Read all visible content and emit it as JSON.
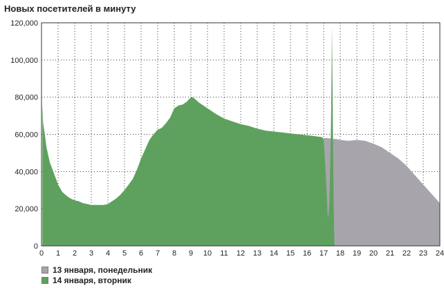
{
  "chart_data": {
    "type": "area",
    "title": "Новых посетителей в минуту",
    "x_ticks": [
      "0",
      "1",
      "2",
      "3",
      "4",
      "5",
      "6",
      "7",
      "8",
      "9",
      "10",
      "11",
      "12",
      "13",
      "14",
      "15",
      "16",
      "17",
      "18",
      "19",
      "20",
      "21",
      "22",
      "23",
      "24"
    ],
    "y_ticks": [
      "0",
      "20,000",
      "40,000",
      "60,000",
      "80,000",
      "100,000",
      "120,000"
    ],
    "xlim": [
      0,
      24
    ],
    "ylim": [
      0,
      120000
    ],
    "grid": true,
    "legend_placement": "bottom-left",
    "series": [
      {
        "name": "13 января, понедельник",
        "color": "#a7a5ab",
        "x": [
          17.0,
          17.25,
          17.5,
          17.75,
          18.0,
          18.5,
          19.0,
          19.5,
          20.0,
          20.5,
          21.0,
          21.5,
          22.0,
          22.5,
          23.0,
          23.5,
          24.0
        ],
        "y": [
          58000,
          58000,
          57500,
          57500,
          57000,
          56500,
          57000,
          56500,
          55000,
          53000,
          50000,
          47000,
          43000,
          38000,
          33000,
          28000,
          23000
        ]
      },
      {
        "name": "14 января, вторник",
        "color": "#5ea15e",
        "x": [
          0.05,
          0.1,
          0.2,
          0.3,
          0.5,
          0.75,
          1.0,
          1.25,
          1.5,
          1.75,
          2.0,
          2.25,
          2.5,
          2.75,
          3.0,
          3.25,
          3.5,
          3.75,
          4.0,
          4.25,
          4.5,
          4.75,
          5.0,
          5.25,
          5.5,
          5.75,
          6.0,
          6.25,
          6.5,
          6.75,
          7.0,
          7.25,
          7.5,
          7.75,
          8.0,
          8.25,
          8.5,
          8.75,
          9.0,
          9.1,
          9.25,
          9.5,
          9.75,
          10.0,
          10.5,
          11.0,
          11.5,
          12.0,
          12.5,
          13.0,
          13.5,
          14.0,
          14.5,
          15.0,
          15.5,
          16.0,
          16.5,
          16.9,
          17.0,
          17.05,
          17.15,
          17.25,
          17.3,
          17.35,
          17.4,
          17.45,
          17.5,
          17.6,
          17.65
        ],
        "y": [
          76000,
          66000,
          60000,
          53000,
          45000,
          39000,
          33000,
          29000,
          27000,
          25500,
          24500,
          24000,
          23000,
          22500,
          22000,
          22000,
          22000,
          22000,
          22500,
          24000,
          25500,
          27500,
          30000,
          33000,
          36000,
          41000,
          47000,
          52000,
          57000,
          60000,
          62500,
          63500,
          66000,
          69000,
          74000,
          75500,
          76000,
          77500,
          80000,
          80000,
          79000,
          77000,
          75500,
          74000,
          71000,
          68500,
          67000,
          65500,
          64500,
          63000,
          62000,
          61500,
          61000,
          60500,
          60000,
          59500,
          59000,
          58500,
          57500,
          50000,
          35000,
          15000,
          17000,
          25000,
          45000,
          70000,
          118000,
          23000,
          0
        ]
      }
    ]
  }
}
